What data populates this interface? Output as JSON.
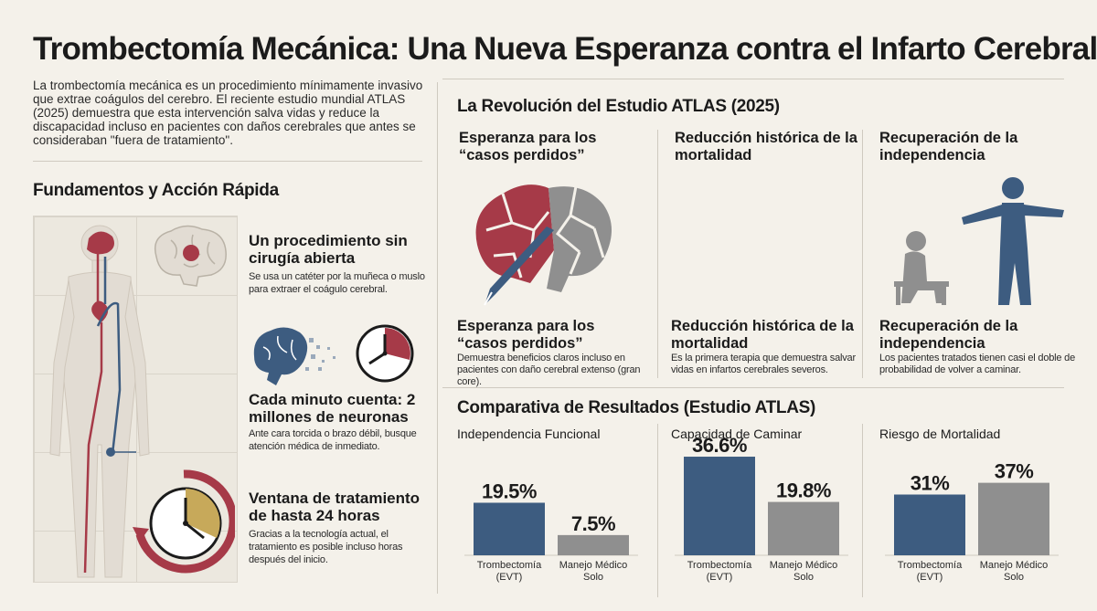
{
  "title": "Trombectomía Mecánica: Una Nueva Esperanza contra el Infarto Cerebral",
  "intro": "La trombectomía mecánica es un procedimiento mínimamente invasivo que extrae coágulos del cerebro. El reciente estudio mundial ATLAS (2025) demuestra que esta intervención salva vidas y reduce la discapacidad incluso en pacientes con daños cerebrales que antes se consideraban \"fuera de tratamiento\".",
  "fundamentos": {
    "heading": "Fundamentos y Acción Rápida",
    "items": [
      {
        "title": "Un procedimiento sin cirugía abierta",
        "text": "Se usa un catéter por la muñeca o muslo para extraer el coágulo cerebral."
      },
      {
        "title": "Cada minuto cuenta: 2 millones de neuronas",
        "text": "Ante cara torcida o brazo débil, busque atención médica de inmediato."
      },
      {
        "title": "Ventana de tratamiento de hasta 24 horas",
        "text": "Gracias a la tecnología actual, el tratamiento es posible incluso horas después del inicio."
      }
    ]
  },
  "atlas": {
    "heading": "La Revolución del Estudio ATLAS (2025)",
    "columns": [
      {
        "top_title": "Esperanza para los “casos perdidos”",
        "title": "Esperanza para los “casos perdidos”",
        "text": "Demuestra beneficios claros incluso en pacientes con daño cerebral extenso (gran core)."
      },
      {
        "top_title": "Reducción histórica de la mortalidad",
        "title": "Reducción histórica de la mortalidad",
        "text": "Es la primera terapia que demuestra salvar vidas en infartos cerebrales severos."
      },
      {
        "top_title": "Recuperación de la independencia",
        "title": "Recuperación de la independencia",
        "text": "Los pacientes tratados tienen casi el doble de probabilidad de volver a caminar."
      }
    ]
  },
  "comparativa": {
    "heading": "Comparativa de Resultados (Estudio ATLAS)"
  },
  "colors": {
    "blue": "#3d5c80",
    "gray": "#8f8f8f",
    "red": "#a63a48"
  },
  "chart_data": [
    {
      "type": "bar",
      "title": "Independencia Funcional",
      "categories": [
        "Trombectomía (EVT)",
        "Manejo Médico Solo"
      ],
      "category_lines": [
        [
          "Trombectomía",
          "(EVT)"
        ],
        [
          "Manejo Médico",
          "Solo"
        ]
      ],
      "values": [
        19.5,
        7.5
      ],
      "labels": [
        "19.5%",
        "7.5%"
      ],
      "ylim": [
        0,
        40
      ]
    },
    {
      "type": "bar",
      "title": "Capacidad de Caminar",
      "categories": [
        "Trombectomía (EVT)",
        "Manejo Médico Solo"
      ],
      "category_lines": [
        [
          "Trombectomía",
          "(EVT)"
        ],
        [
          "Manejo Médico",
          "Solo"
        ]
      ],
      "values": [
        36.6,
        19.8
      ],
      "labels": [
        "36.6%",
        "19.8%"
      ],
      "ylim": [
        0,
        40
      ]
    },
    {
      "type": "bar",
      "title": "Riesgo de Mortalidad",
      "categories": [
        "Trombectomía (EVT)",
        "Manejo Médico Solo"
      ],
      "category_lines": [
        [
          "Trombectomía",
          "(EVT)"
        ],
        [
          "Manejo Médico",
          "Solo"
        ]
      ],
      "values": [
        31,
        37
      ],
      "labels": [
        "31%",
        "37%"
      ],
      "ylim": [
        0,
        55
      ]
    }
  ]
}
